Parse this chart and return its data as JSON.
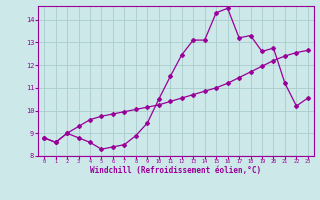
{
  "line1_x": [
    0,
    1,
    2,
    3,
    4,
    5,
    6,
    7,
    8,
    9,
    10,
    11,
    12,
    13,
    14,
    15,
    16,
    17,
    18,
    19,
    20,
    21,
    22,
    23
  ],
  "line1_y": [
    8.8,
    8.6,
    9.0,
    8.8,
    8.6,
    8.3,
    8.4,
    8.5,
    8.9,
    9.45,
    10.5,
    11.5,
    12.45,
    13.1,
    13.1,
    14.3,
    14.5,
    13.2,
    13.3,
    12.6,
    12.75,
    11.2,
    10.2,
    10.55
  ],
  "line2_x": [
    0,
    1,
    2,
    3,
    4,
    5,
    6,
    7,
    8,
    9,
    10,
    11,
    12,
    13,
    14,
    15,
    16,
    17,
    18,
    19,
    20,
    21,
    22,
    23
  ],
  "line2_y": [
    8.8,
    8.6,
    9.0,
    9.3,
    9.6,
    9.75,
    9.85,
    9.95,
    10.05,
    10.15,
    10.25,
    10.4,
    10.55,
    10.7,
    10.85,
    11.0,
    11.2,
    11.45,
    11.7,
    11.95,
    12.2,
    12.4,
    12.55,
    12.65
  ],
  "line_color": "#990099",
  "background_color": "#cce8e8",
  "grid_color": "#aacccc",
  "xlabel": "Windchill (Refroidissement éolien,°C)",
  "ylim": [
    8.0,
    14.6
  ],
  "xlim": [
    -0.5,
    23.5
  ],
  "yticks": [
    8,
    9,
    10,
    11,
    12,
    13,
    14
  ],
  "xticks": [
    0,
    1,
    2,
    3,
    4,
    5,
    6,
    7,
    8,
    9,
    10,
    11,
    12,
    13,
    14,
    15,
    16,
    17,
    18,
    19,
    20,
    21,
    22,
    23
  ]
}
